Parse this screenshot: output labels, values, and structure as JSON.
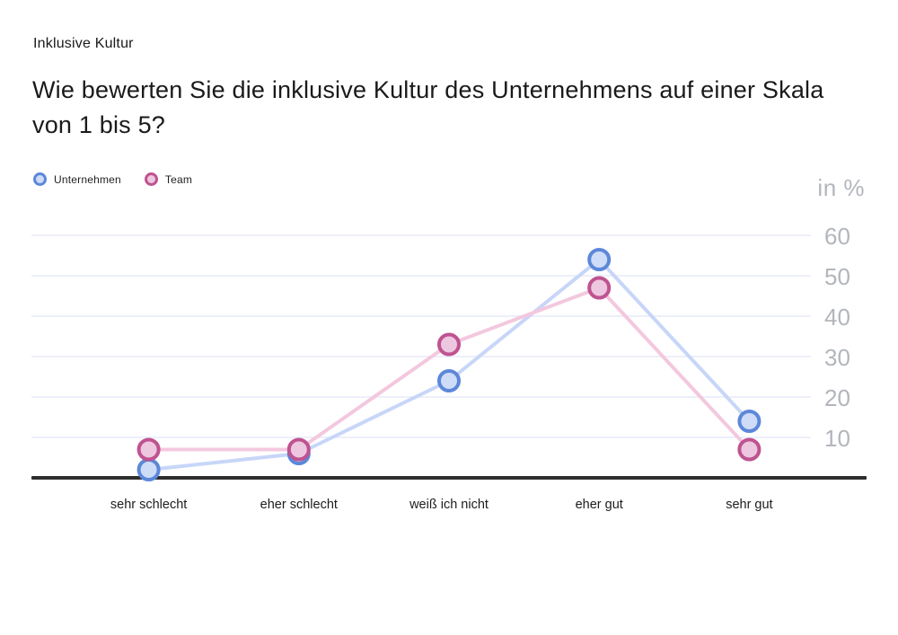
{
  "page": {
    "eyebrow": "Inklusive Kultur",
    "question": "Wie bewerten Sie die inklusive Kultur des Unternehmens auf einer Skala von 1 bis 5?"
  },
  "chart_data": {
    "type": "line",
    "title": "Wie bewerten Sie die inklusive Kultur des Unternehmens auf einer Skala von 1 bis 5?",
    "unit_label": "in %",
    "categories": [
      "sehr schlecht",
      "eher schlecht",
      "weiß ich nicht",
      "eher gut",
      "sehr gut"
    ],
    "series": [
      {
        "name": "Unternehmen",
        "values": [
          2,
          6,
          24,
          54,
          14
        ],
        "line_color": "#c7d6f8",
        "marker_fill": "#cfdcf8",
        "marker_border": "#5c88d9"
      },
      {
        "name": "Team",
        "values": [
          7,
          7,
          33,
          47,
          7
        ],
        "line_color": "#f3c8de",
        "marker_fill": "#edc7df",
        "marker_border": "#bf5391"
      }
    ],
    "yticks": [
      10,
      20,
      30,
      40,
      50,
      60
    ],
    "ylim": [
      0,
      65
    ],
    "grid": "horizontal",
    "legend_position": "top-left",
    "colors": {
      "axis_line": "#2e2e2e",
      "grid_line": "#e7ebf8",
      "y_tick_label": "#b2b6bc",
      "x_tick_label": "#1c1c1c"
    }
  }
}
